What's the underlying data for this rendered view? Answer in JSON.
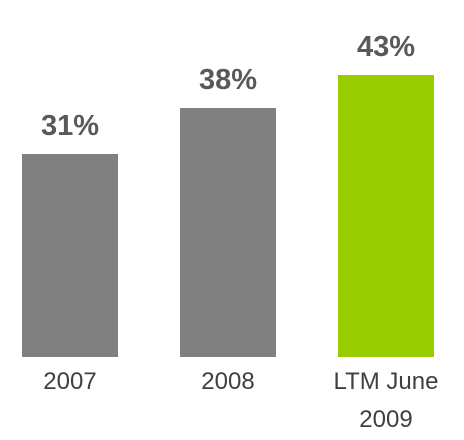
{
  "chart_data": {
    "type": "bar",
    "categories": [
      "2007",
      "2008",
      "LTM June 2009"
    ],
    "values": [
      31,
      38,
      43
    ],
    "value_labels": [
      "31%",
      "38%",
      "43%"
    ],
    "colors": [
      "#808080",
      "#808080",
      "#99cc00"
    ],
    "ylim": [
      0,
      50
    ]
  }
}
